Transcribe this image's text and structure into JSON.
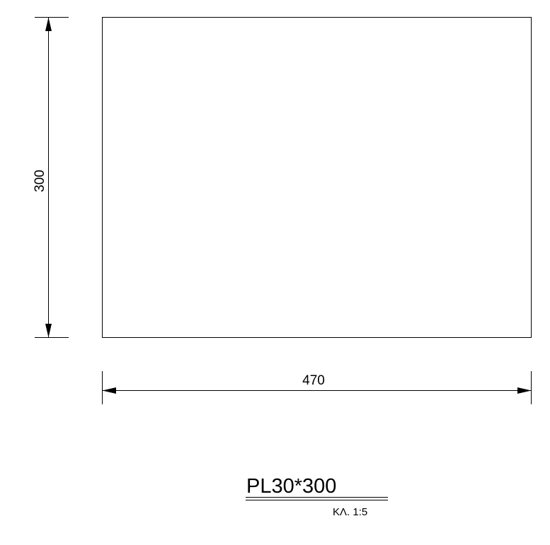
{
  "drawing": {
    "plate_width": "470",
    "plate_height": "300",
    "title": "PL30*300",
    "scale": "ΚΛ. 1:5"
  }
}
